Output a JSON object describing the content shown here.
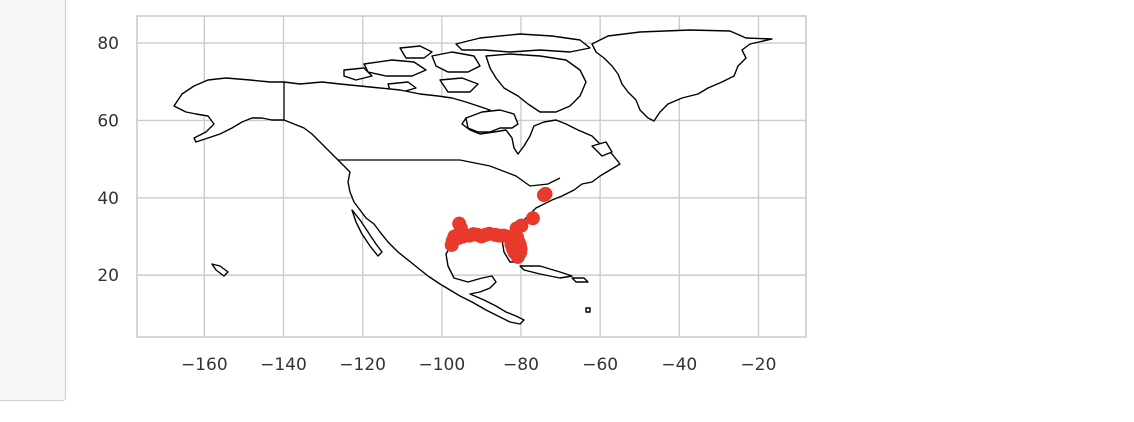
{
  "chart_data": {
    "type": "scatter",
    "title": "",
    "xlabel": "",
    "ylabel": "",
    "xlim": [
      -177,
      -8
    ],
    "ylim": [
      4,
      87
    ],
    "grid": true,
    "x_ticks": [
      -160,
      -140,
      -120,
      -100,
      -80,
      -60,
      -40,
      -20
    ],
    "y_ticks": [
      20,
      40,
      60,
      80
    ],
    "x_tick_labels": [
      "−160",
      "−140",
      "−120",
      "−100",
      "−80",
      "−60",
      "−40",
      "−20"
    ],
    "y_tick_labels": [
      "20",
      "40",
      "60",
      "80"
    ],
    "basemap": "North America coastline",
    "colors": {
      "marker": "#e8392a",
      "grid": "#cccccc",
      "coastline": "#000000"
    },
    "series": [
      {
        "points": [
          {
            "x": -97.5,
            "y": 27.8
          },
          {
            "x": -97.2,
            "y": 29.0
          },
          {
            "x": -96.8,
            "y": 30.0
          },
          {
            "x": -95.8,
            "y": 29.6
          },
          {
            "x": -95.4,
            "y": 30.5
          },
          {
            "x": -95.2,
            "y": 32.2
          },
          {
            "x": -95.6,
            "y": 33.3
          },
          {
            "x": -94.6,
            "y": 30.0
          },
          {
            "x": -94.0,
            "y": 30.3
          },
          {
            "x": -93.0,
            "y": 30.2
          },
          {
            "x": -92.0,
            "y": 30.6
          },
          {
            "x": -91.0,
            "y": 30.4
          },
          {
            "x": -90.0,
            "y": 30.0
          },
          {
            "x": -89.0,
            "y": 30.4
          },
          {
            "x": -88.0,
            "y": 30.7
          },
          {
            "x": -86.5,
            "y": 30.4
          },
          {
            "x": -85.5,
            "y": 30.2
          },
          {
            "x": -84.3,
            "y": 30.2
          },
          {
            "x": -83.0,
            "y": 29.9
          },
          {
            "x": -82.4,
            "y": 29.0
          },
          {
            "x": -82.4,
            "y": 27.9
          },
          {
            "x": -82.0,
            "y": 26.7
          },
          {
            "x": -81.6,
            "y": 25.8
          },
          {
            "x": -80.8,
            "y": 24.7
          },
          {
            "x": -80.2,
            "y": 25.8
          },
          {
            "x": -80.1,
            "y": 26.7
          },
          {
            "x": -80.3,
            "y": 27.8
          },
          {
            "x": -80.6,
            "y": 28.5
          },
          {
            "x": -81.0,
            "y": 29.8
          },
          {
            "x": -81.5,
            "y": 30.4
          },
          {
            "x": -81.1,
            "y": 32.1
          },
          {
            "x": -79.9,
            "y": 32.8
          },
          {
            "x": -77.0,
            "y": 34.7
          },
          {
            "x": -74.2,
            "y": 40.7
          },
          {
            "x": -73.8,
            "y": 41.0
          }
        ]
      }
    ]
  }
}
